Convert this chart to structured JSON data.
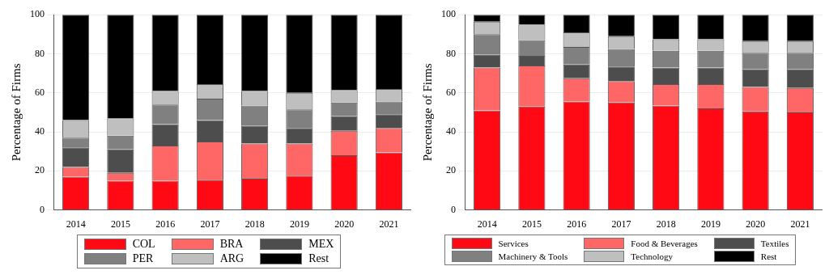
{
  "chart_data": [
    {
      "type": "bar",
      "stacked": true,
      "ylabel": "Percentage of Firms",
      "categories": [
        "2014",
        "2015",
        "2016",
        "2017",
        "2018",
        "2019",
        "2020",
        "2021"
      ],
      "ylim": [
        0,
        100
      ],
      "yticks": [
        0,
        20,
        40,
        60,
        80,
        100
      ],
      "grid": "y",
      "legend": "bottom",
      "series": [
        {
          "name": "COL",
          "color": "#ff0a14",
          "values": [
            17,
            15,
            15,
            15.5,
            16,
            17.5,
            28,
            29.5
          ]
        },
        {
          "name": "BRA",
          "color": "#ff6666",
          "values": [
            5,
            4,
            18,
            19.5,
            18,
            16.5,
            12.5,
            12.5
          ]
        },
        {
          "name": "MEX",
          "color": "#4d4d4d",
          "values": [
            10,
            12,
            11,
            11,
            9,
            8,
            7.5,
            7
          ]
        },
        {
          "name": "PER",
          "color": "#808080",
          "values": [
            5,
            7,
            10,
            11,
            10.5,
            9.5,
            7,
            6.5
          ]
        },
        {
          "name": "ARG",
          "color": "#bfbfbf",
          "values": [
            9,
            9,
            7,
            7.5,
            7.5,
            8.5,
            6.5,
            6.5
          ]
        },
        {
          "name": "Rest",
          "color": "#000000",
          "values": [
            54,
            53,
            39,
            35.5,
            39,
            40,
            38.5,
            38
          ]
        }
      ]
    },
    {
      "type": "bar",
      "stacked": true,
      "ylabel": "Percentage of Firms",
      "categories": [
        "2014",
        "2015",
        "2016",
        "2017",
        "2018",
        "2019",
        "2020",
        "2021"
      ],
      "ylim": [
        0,
        100
      ],
      "yticks": [
        0,
        20,
        40,
        60,
        80,
        100
      ],
      "grid": "y",
      "legend": "bottom",
      "series": [
        {
          "name": "Services",
          "color": "#ff0a14",
          "values": [
            51,
            53,
            55.5,
            55,
            53.5,
            52,
            50.5,
            50
          ]
        },
        {
          "name": "Food & Beverages",
          "color": "#ff6666",
          "values": [
            22,
            21,
            12,
            11,
            11,
            12.5,
            12.5,
            12.5
          ]
        },
        {
          "name": "Textiles",
          "color": "#4d4d4d",
          "values": [
            6.5,
            5,
            7,
            7.5,
            8.5,
            8.5,
            9,
            9.5
          ]
        },
        {
          "name": "Machinery & Tools",
          "color": "#808080",
          "values": [
            10.5,
            8,
            9,
            9,
            8.5,
            8.5,
            8.5,
            8.5
          ]
        },
        {
          "name": "Technology",
          "color": "#bfbfbf",
          "values": [
            6.5,
            8,
            7.5,
            6.5,
            6,
            6,
            6,
            6
          ]
        },
        {
          "name": "Rest",
          "color": "#000000",
          "values": [
            3.5,
            5,
            9,
            11,
            12.5,
            12.5,
            13.5,
            13.5
          ]
        }
      ]
    }
  ]
}
